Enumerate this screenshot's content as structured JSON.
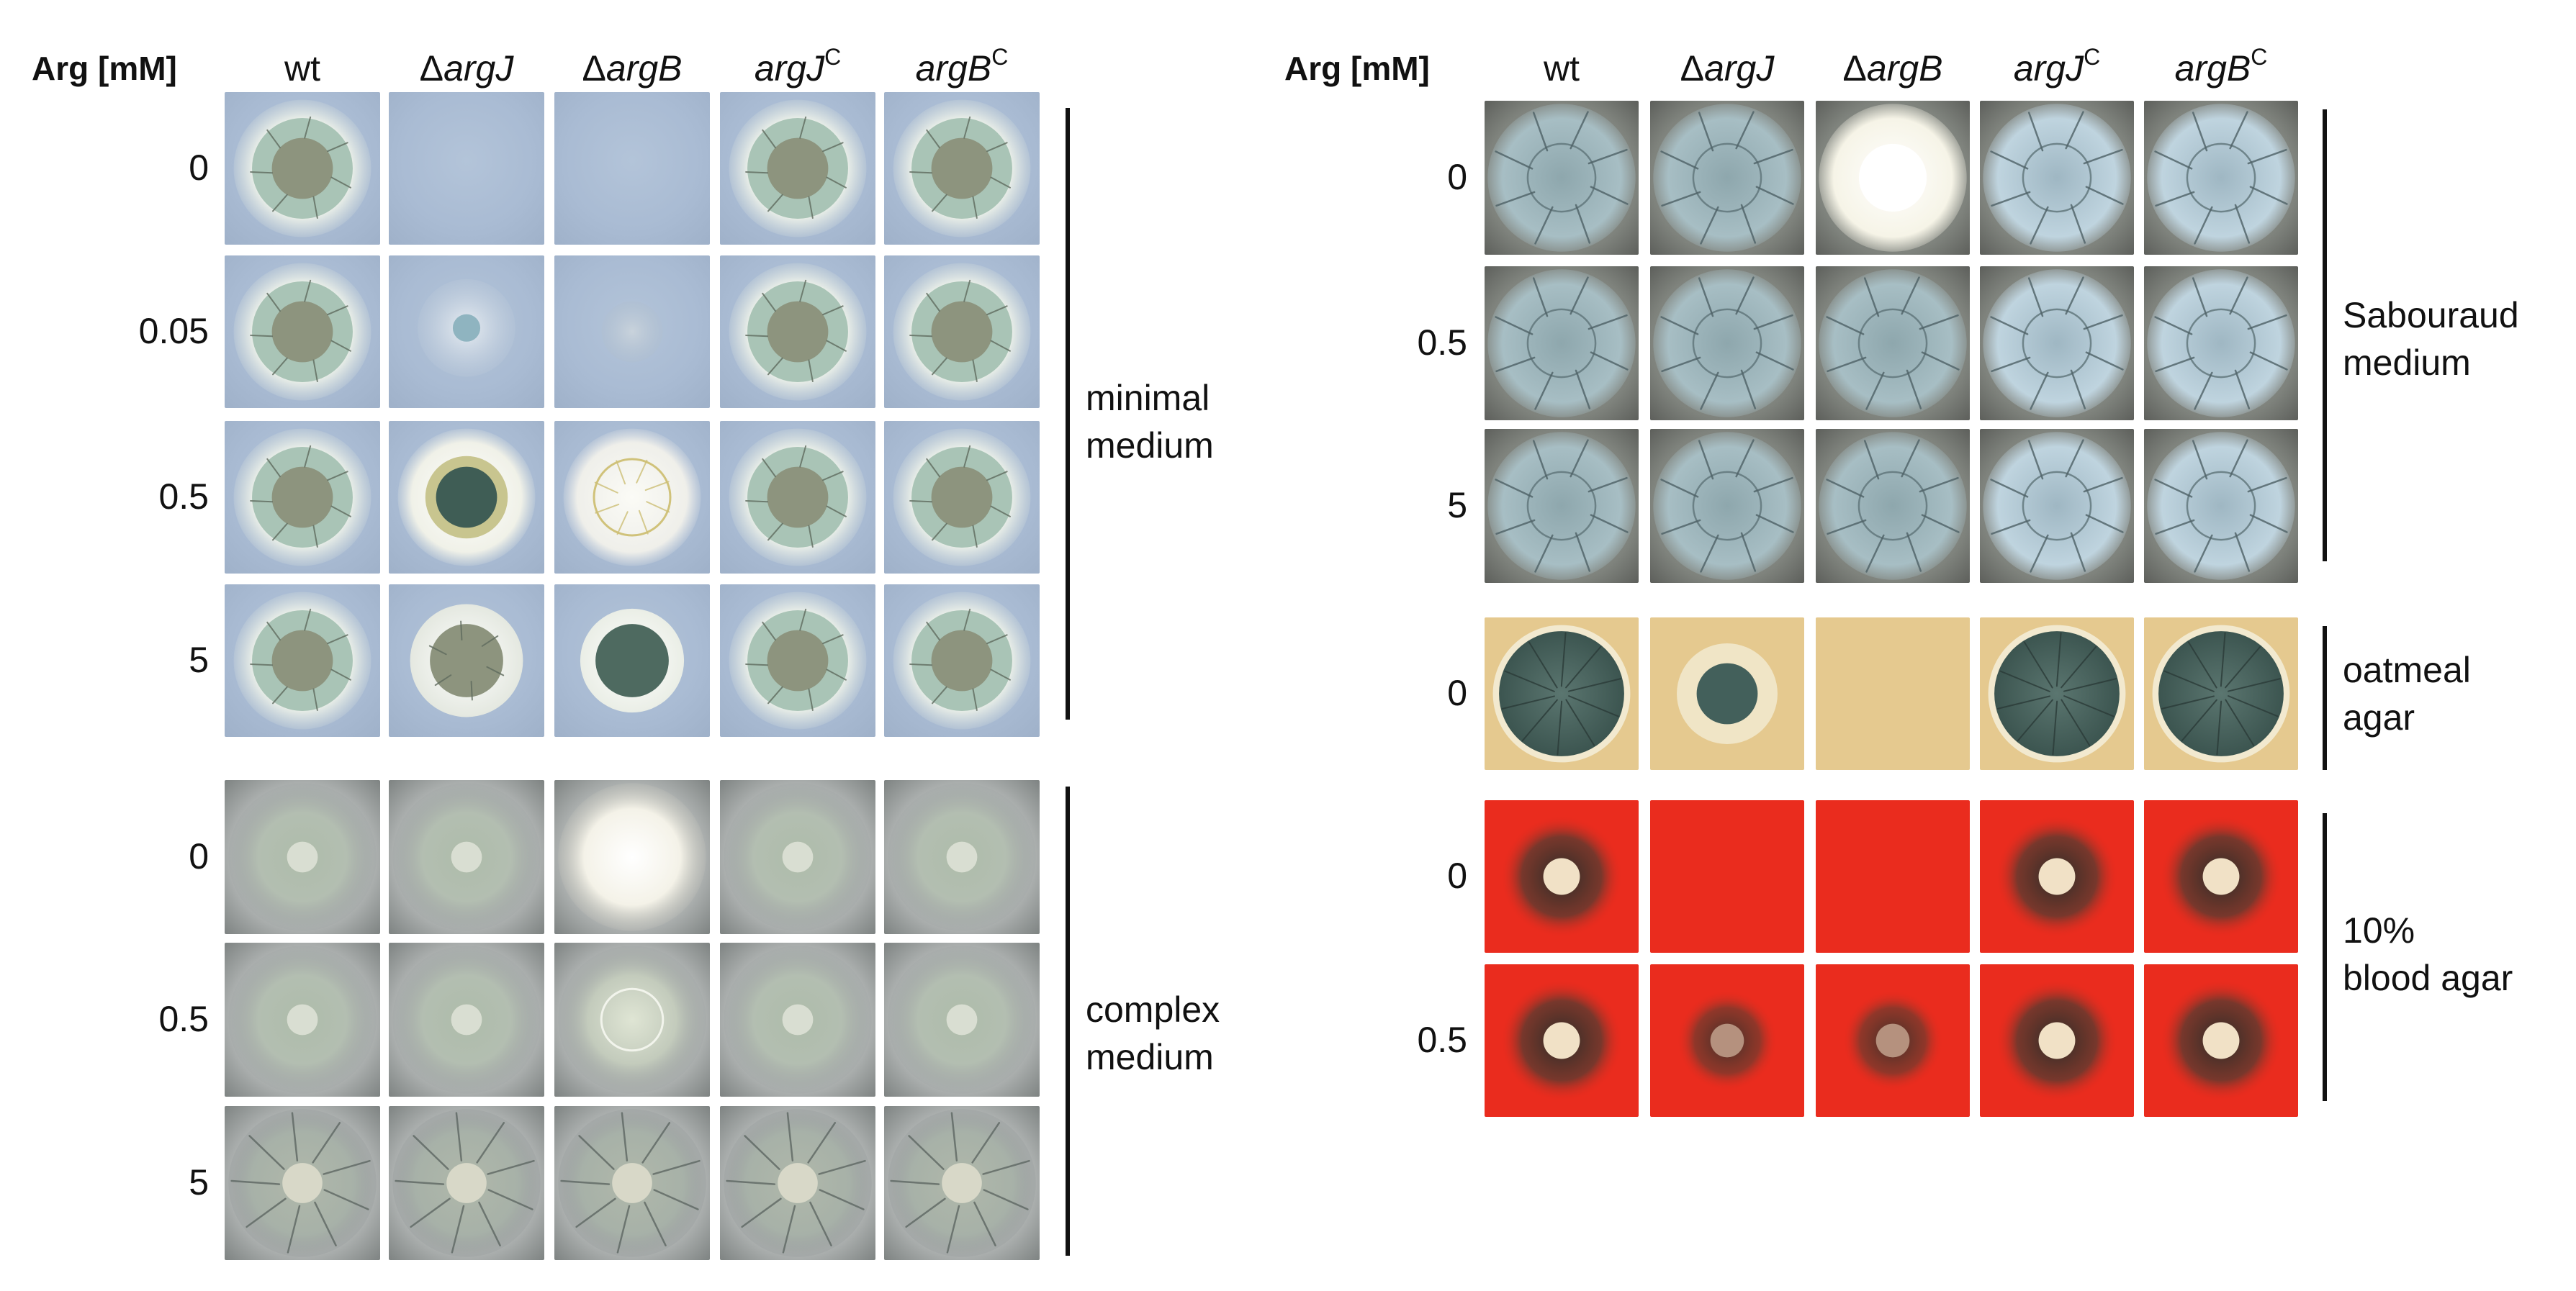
{
  "left_panel": {
    "arg_header": "Arg [mM]",
    "columns": [
      {
        "prefix": "",
        "italic": "wt",
        "sup": "",
        "plain": true
      },
      {
        "prefix": "Δ",
        "italic": "argJ",
        "sup": ""
      },
      {
        "prefix": "Δ",
        "italic": "argB",
        "sup": ""
      },
      {
        "prefix": "",
        "italic": "argJ",
        "sup": "C"
      },
      {
        "prefix": "",
        "italic": "argB",
        "sup": "C"
      }
    ],
    "groups": [
      {
        "label_line1": "minimal",
        "label_line2": "medium",
        "rows": [
          {
            "arg": "0",
            "growth": [
              "full",
              "none",
              "none",
              "full",
              "full"
            ]
          },
          {
            "arg": "0.05",
            "growth": [
              "full",
              "small",
              "tiny",
              "full",
              "full"
            ]
          },
          {
            "arg": "0.5",
            "growth": [
              "full",
              "full-dark",
              "full-pale",
              "full",
              "full"
            ]
          },
          {
            "arg": "5",
            "growth": [
              "full",
              "mid",
              "mid-dark",
              "full",
              "full"
            ]
          }
        ]
      },
      {
        "label_line1": "complex",
        "label_line2": "medium",
        "rows": [
          {
            "arg": "0",
            "growth": [
              "diffuse",
              "diffuse",
              "white",
              "diffuse",
              "diffuse"
            ]
          },
          {
            "arg": "0.5",
            "growth": [
              "diffuse",
              "diffuse",
              "diffuse-light",
              "diffuse",
              "diffuse"
            ]
          },
          {
            "arg": "5",
            "growth": [
              "wrinkled",
              "wrinkled",
              "wrinkled",
              "wrinkled",
              "wrinkled"
            ]
          }
        ]
      }
    ]
  },
  "right_panel": {
    "arg_header": "Arg [mM]",
    "columns": [
      {
        "prefix": "",
        "italic": "wt",
        "sup": "",
        "plain": true
      },
      {
        "prefix": "Δ",
        "italic": "argJ",
        "sup": ""
      },
      {
        "prefix": "Δ",
        "italic": "argB",
        "sup": ""
      },
      {
        "prefix": "",
        "italic": "argJ",
        "sup": "C"
      },
      {
        "prefix": "",
        "italic": "argB",
        "sup": "C"
      }
    ],
    "groups": [
      {
        "label_line1": "Sabouraud",
        "label_line2": "medium",
        "rows": [
          {
            "arg": "0",
            "growth": [
              "sab",
              "sab",
              "sab-white",
              "sab-blue",
              "sab-blue"
            ]
          },
          {
            "arg": "0.5",
            "growth": [
              "sab",
              "sab",
              "sab",
              "sab-blue",
              "sab-blue"
            ]
          },
          {
            "arg": "5",
            "growth": [
              "sab",
              "sab",
              "sab",
              "sab-blue",
              "sab-blue"
            ]
          }
        ]
      },
      {
        "label_line1": "oatmeal",
        "label_line2": "agar",
        "rows": [
          {
            "arg": "0",
            "growth": [
              "oat",
              "oat-small",
              "none",
              "oat",
              "oat"
            ]
          }
        ]
      },
      {
        "label_line1": "10%",
        "label_line2": "blood agar",
        "rows": [
          {
            "arg": "0",
            "growth": [
              "blood",
              "none",
              "none",
              "blood",
              "blood"
            ]
          },
          {
            "arg": "0.5",
            "growth": [
              "blood",
              "blood-dark",
              "blood-dark",
              "blood",
              "blood"
            ]
          }
        ]
      }
    ]
  },
  "colors": {
    "minimal_bg": "#a9bbd3",
    "complex_bg": "#aeb2b1",
    "sabouraud_bg": "#7f837d",
    "oatmeal_bg": "#e5c98f",
    "blood_bg": "#ea2c1e",
    "text": "#111111"
  }
}
